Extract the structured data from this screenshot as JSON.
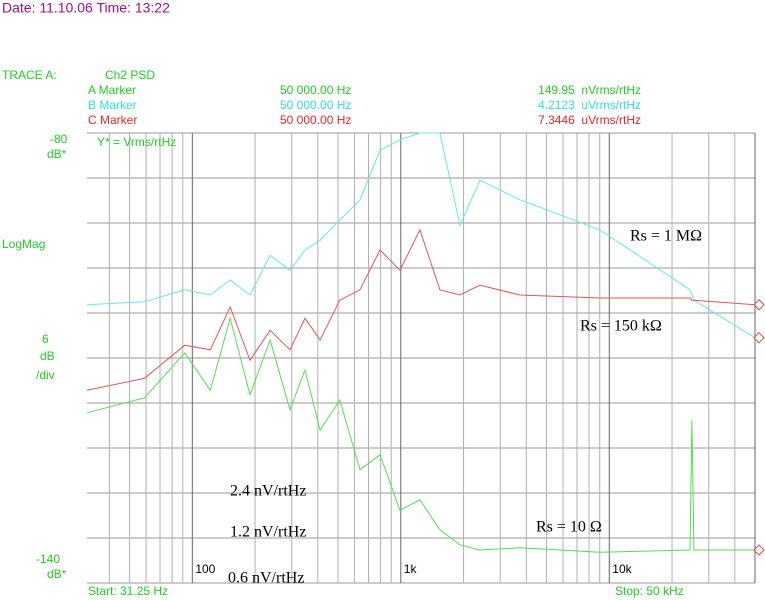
{
  "header": {
    "datetime": "Date: 11.10.06  Time: 13:22"
  },
  "trace": {
    "label": "TRACE A:",
    "channel": "Ch2 PSD"
  },
  "markers": [
    {
      "name": "A Marker",
      "frequency": "50 000.00 Hz",
      "reading": "149.95  nVrms/rtHz",
      "color": "#22cc22"
    },
    {
      "name": "B Marker",
      "frequency": "50 000.00 Hz",
      "reading": "4.2123  uVrms/rtHz",
      "color": "#33dddd"
    },
    {
      "name": "C Marker",
      "frequency": "50 000.00 Hz",
      "reading": "7.3446  uVrms/rtHz",
      "color": "#e02828"
    }
  ],
  "left_panel": {
    "top_unit": "dB*",
    "mode": "LogMag",
    "div_value": 6,
    "div_unit": "dB",
    "div_suffix": "/div",
    "bottom_unit": "dB*"
  },
  "footer": {
    "start": "Start: 31.25 Hz",
    "stop": "Stop: 50 kHz"
  },
  "annotations": {
    "rs_1m": "Rs = 1 MΩ",
    "rs_150k": "Rs = 150 kΩ",
    "rs_10": "Rs = 10 Ω",
    "n24": "2.4 nV/rtHz",
    "n12": "1.2 nV/rtHz",
    "n06": "0.6 nV/rtHz"
  },
  "chart_data": {
    "type": "line",
    "y_unit_label": "Y* = Vrms/rtHz",
    "xscale": "log",
    "minor_grid": true,
    "xlim": [
      31.25,
      50000
    ],
    "xticks": [
      {
        "value": 100,
        "label": "100"
      },
      {
        "value": 1000,
        "label": "1k"
      },
      {
        "value": 10000,
        "label": "10k"
      }
    ],
    "ylim": [
      -140,
      -80
    ],
    "yticks": [
      -80,
      -140
    ],
    "x": [
      31.25,
      59,
      92,
      122,
      152,
      189,
      236,
      294,
      347,
      410,
      510,
      637,
      795,
      991,
      1235,
      1541,
      1922,
      2397,
      3730,
      9010,
      24380,
      24900,
      25470,
      50000
    ],
    "series": [
      {
        "name": "A",
        "color": "#55dd55",
        "values": [
          -117.3,
          -115.3,
          -109.3,
          -114.3,
          -104.7,
          -114.9,
          -107.6,
          -116.9,
          -111.6,
          -119.6,
          -115.6,
          -124.9,
          -122.9,
          -130.3,
          -128.9,
          -132.9,
          -134.9,
          -135.6,
          -135.3,
          -135.9,
          -135.6,
          -118.3,
          -135.6,
          -135.6
        ]
      },
      {
        "name": "B",
        "color": "#66e8e8",
        "values": [
          -102.9,
          -102.5,
          -100.9,
          -101.6,
          -99.6,
          -101.6,
          -96.3,
          -98.3,
          -95.6,
          -94.3,
          -91.6,
          -88.9,
          -82.3,
          -80.9,
          -80,
          -80,
          -92.3,
          -86.3,
          -88.9,
          -92.9,
          -100.9,
          -101.6,
          -102.3,
          -107.3
        ]
      },
      {
        "name": "C",
        "color": "#e65555",
        "values": [
          -114.3,
          -112.7,
          -108.3,
          -108.9,
          -103.2,
          -110.3,
          -106.3,
          -108.9,
          -104.7,
          -107.6,
          -102.3,
          -100.9,
          -95.6,
          -98.3,
          -92.9,
          -100.9,
          -101.6,
          -100.3,
          -101.6,
          -102,
          -102,
          -102.3,
          -102.3,
          -102.9
        ]
      }
    ]
  }
}
